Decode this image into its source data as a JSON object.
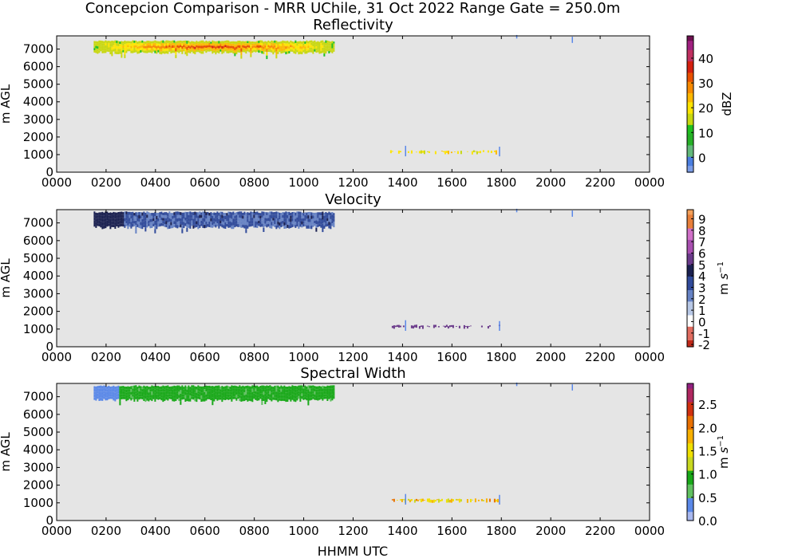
{
  "figure": {
    "suptitle": "Concepcion Comparison - MRR UChile, 31 Oct 2022 Range Gate = 250.0m",
    "xlabel": "HHMM UTC"
  },
  "colors": {
    "background_panel": "#e5e5e5",
    "reflectivity_scale": [
      "#7b9de8",
      "#4a7ee0",
      "#62b87a",
      "#27b027",
      "#20c020",
      "#c8d810",
      "#fde500",
      "#fdb800",
      "#f88a00",
      "#e85000",
      "#d42010",
      "#c03060",
      "#a02080",
      "#6e1050"
    ],
    "velocity_scale": [
      "#c02818",
      "#e06c60",
      "#ffffff",
      "#b8c8e6",
      "#6682c4",
      "#304a9a",
      "#1a2050",
      "#6a3a8a",
      "#a84fb0",
      "#d070c8",
      "#e87f3a",
      "#f4a05a"
    ],
    "width_scale": [
      "#a8b8f0",
      "#5a88e8",
      "#60c060",
      "#18a818",
      "#c8d820",
      "#f0e000",
      "#f8b000",
      "#e87000",
      "#d03010",
      "#b02860",
      "#902080"
    ]
  },
  "chart_data": [
    {
      "type": "heatmap",
      "title": "Reflectivity",
      "xlabel": "",
      "ylabel": "m AGL",
      "xlim": [
        0,
        2400
      ],
      "ylim": [
        0,
        7750
      ],
      "x_ticks": [
        "0000",
        "0200",
        "0400",
        "0600",
        "0800",
        "1000",
        "1200",
        "1400",
        "1600",
        "1800",
        "2000",
        "2200",
        "0000"
      ],
      "y_ticks": [
        "0",
        "1000",
        "2000",
        "3000",
        "4000",
        "5000",
        "6000",
        "7000"
      ],
      "colorbar": {
        "label": "dBZ",
        "range": [
          -6,
          49
        ],
        "ticks": [
          "0",
          "10",
          "20",
          "30",
          "40"
        ]
      },
      "features": [
        {
          "x_start": 150,
          "x_end": 1120,
          "y_bottom": 6700,
          "y_top": 7500,
          "value_range": [
            5,
            33
          ],
          "peak": 32
        },
        {
          "x_start": 1350,
          "x_end": 1790,
          "y_bottom": 1000,
          "y_top": 1250,
          "value_range": [
            15,
            25
          ]
        }
      ]
    },
    {
      "type": "heatmap",
      "title": "Velocity",
      "xlabel": "",
      "ylabel": "m s^-1 / m AGL",
      "ylabel_left": "m AGL",
      "xlim": [
        0,
        2400
      ],
      "ylim": [
        0,
        7750
      ],
      "x_ticks": [
        "0000",
        "0200",
        "0400",
        "0600",
        "0800",
        "1000",
        "1200",
        "1400",
        "1600",
        "1800",
        "2000",
        "2200",
        "0000"
      ],
      "y_ticks": [
        "0",
        "1000",
        "2000",
        "3000",
        "4000",
        "5000",
        "6000",
        "7000"
      ],
      "colorbar": {
        "label_main": "m",
        "label_sup": "s",
        "label_exp": "−1",
        "range": [
          -2.2,
          9.8
        ],
        "ticks": [
          "-2",
          "-1",
          "0",
          "1",
          "2",
          "3",
          "4",
          "5",
          "6",
          "7",
          "8",
          "9"
        ]
      },
      "features": [
        {
          "x_start": 150,
          "x_end": 1120,
          "y_bottom": 6650,
          "y_top": 7650,
          "value_range": [
            1.5,
            4.5
          ]
        },
        {
          "x_start": 1350,
          "x_end": 1790,
          "y_bottom": 1000,
          "y_top": 1250,
          "value_range": [
            5,
            6
          ]
        }
      ]
    },
    {
      "type": "heatmap",
      "title": "Spectral Width",
      "xlabel": "HHMM UTC",
      "ylabel": "m AGL",
      "xlim": [
        0,
        2400
      ],
      "ylim": [
        0,
        7750
      ],
      "x_ticks": [
        "0000",
        "0200",
        "0400",
        "0600",
        "0800",
        "1000",
        "1200",
        "1400",
        "1600",
        "1800",
        "2000",
        "2200",
        "0000"
      ],
      "y_ticks": [
        "0",
        "1000",
        "2000",
        "3000",
        "4000",
        "5000",
        "6000",
        "7000"
      ],
      "colorbar": {
        "label_main": "m",
        "label_sup": "s",
        "label_exp": "−1",
        "range": [
          0,
          2.95
        ],
        "ticks": [
          "0.0",
          "0.5",
          "1.0",
          "1.5",
          "2.0",
          "2.5"
        ]
      },
      "features": [
        {
          "x_start": 150,
          "x_end": 1120,
          "y_bottom": 6700,
          "y_top": 7650,
          "value_range": [
            0.3,
            1.0
          ]
        },
        {
          "x_start": 1350,
          "x_end": 1790,
          "y_bottom": 1000,
          "y_top": 1250,
          "value_range": [
            1.2,
            2.0
          ]
        }
      ]
    }
  ]
}
